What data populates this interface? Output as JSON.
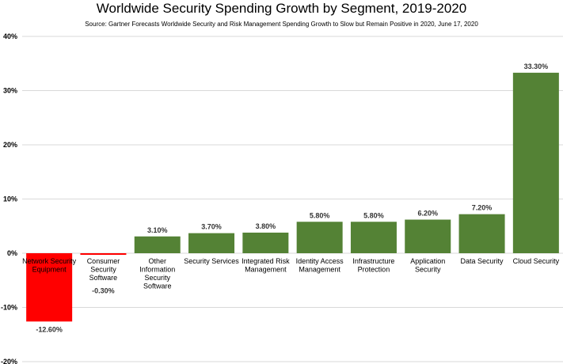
{
  "chart_data": {
    "type": "bar",
    "title": "Worldwide Security Spending Growth by Segment, 2019-2020",
    "subtitle": "Source: Gartner Forecasts Worldwide Security and Risk Management Spending Growth to Slow but Remain Positive in 2020, June 17, 2020",
    "categories": [
      "Network Security Equipment",
      "Consumer Security Software",
      "Other Information Security Software",
      "Security Services",
      "Integrated Risk Management",
      "Identity Access Management",
      "Infrastructure Protection",
      "Application Security",
      "Data Security",
      "Cloud Security"
    ],
    "category_label_lines": [
      [
        "Network Security",
        "Equipment"
      ],
      [
        "Consumer",
        "Security",
        "Software"
      ],
      [
        "Other",
        "Information",
        "Security",
        "Software"
      ],
      [
        "Security Services"
      ],
      [
        "Integrated Risk",
        "Management"
      ],
      [
        "Identity Access",
        "Management"
      ],
      [
        "Infrastructure",
        "Protection"
      ],
      [
        "Application",
        "Security"
      ],
      [
        "Data Security"
      ],
      [
        "Cloud Security"
      ]
    ],
    "values": [
      -12.6,
      -0.3,
      3.1,
      3.7,
      3.8,
      5.8,
      5.8,
      6.2,
      7.2,
      33.3
    ],
    "value_labels": [
      "-12.60%",
      "-0.30%",
      "3.10%",
      "3.70%",
      "3.80%",
      "5.80%",
      "5.80%",
      "6.20%",
      "7.20%",
      "33.30%"
    ],
    "ylim": [
      -20,
      40
    ],
    "yticks": [
      -20,
      -10,
      0,
      10,
      20,
      30,
      40
    ],
    "ytick_labels": [
      "-20%",
      "-10%",
      "0%",
      "10%",
      "20%",
      "30%",
      "40%"
    ],
    "grid": true,
    "colors": {
      "positive": "#548235",
      "negative": "#ff0000"
    }
  }
}
